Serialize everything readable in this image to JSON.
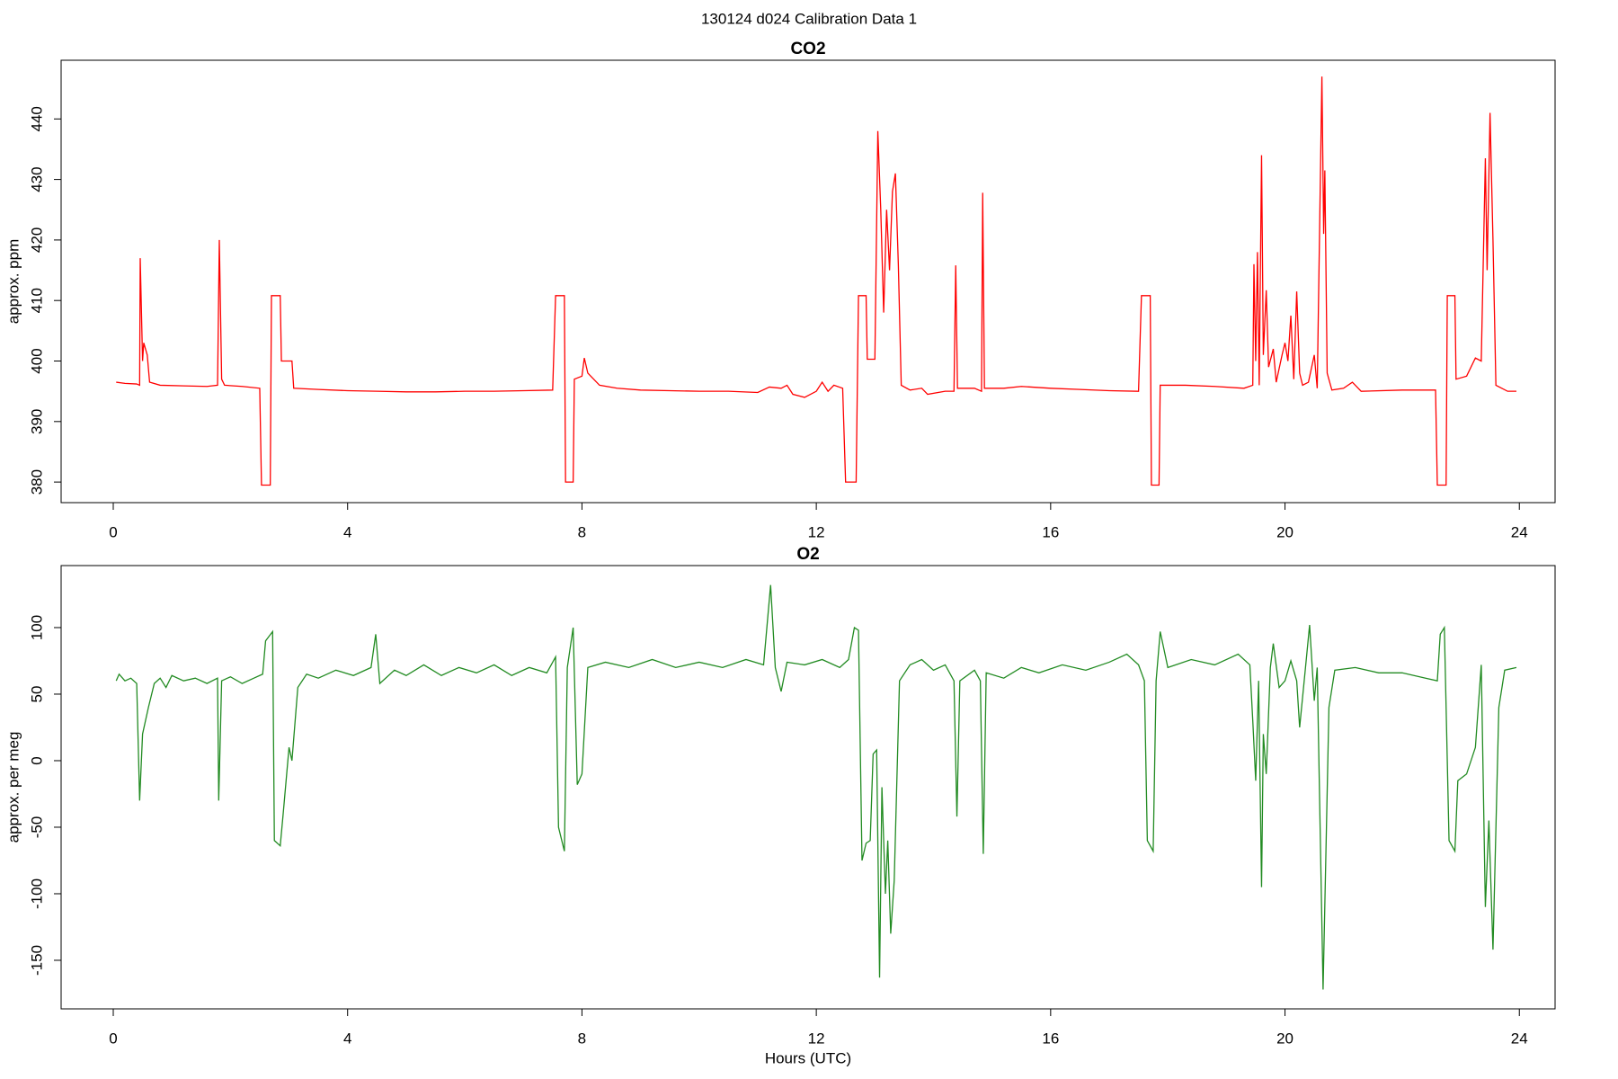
{
  "title": "130124   d024   Calibration Data 1",
  "chart_data": [
    {
      "type": "line",
      "title": "CO2",
      "ylabel": "approx. ppm",
      "xlim": [
        -0.89,
        24.61
      ],
      "ylim": [
        376.6,
        449.7
      ],
      "xticks": [
        0,
        4,
        8,
        12,
        16,
        20,
        24
      ],
      "yticks": [
        380,
        390,
        400,
        410,
        420,
        430,
        440
      ],
      "color": "#ff0000",
      "x": [
        0.05,
        0.2,
        0.4,
        0.45,
        0.46,
        0.5,
        0.52,
        0.58,
        0.62,
        0.8,
        1.2,
        1.6,
        1.78,
        1.81,
        1.85,
        1.9,
        2.2,
        2.5,
        2.53,
        2.68,
        2.7,
        2.85,
        2.87,
        3.05,
        3.08,
        3.5,
        4,
        4.5,
        5,
        5.5,
        6,
        6.5,
        7,
        7.5,
        7.55,
        7.7,
        7.72,
        7.85,
        7.87,
        8,
        8.04,
        8.1,
        8.3,
        8.6,
        9,
        9.5,
        10,
        10.5,
        11,
        11.2,
        11.4,
        11.5,
        11.6,
        11.8,
        12,
        12.1,
        12.2,
        12.3,
        12.45,
        12.5,
        12.68,
        12.72,
        12.85,
        12.87,
        13,
        13.05,
        13.1,
        13.15,
        13.2,
        13.25,
        13.3,
        13.35,
        13.4,
        13.45,
        13.6,
        13.8,
        13.9,
        14.2,
        14.35,
        14.38,
        14.41,
        14.7,
        14.82,
        14.84,
        14.87,
        15.2,
        15.5,
        16,
        16.5,
        17,
        17.5,
        17.55,
        17.7,
        17.72,
        17.85,
        17.87,
        18.3,
        18.8,
        19.3,
        19.45,
        19.47,
        19.5,
        19.53,
        19.56,
        19.6,
        19.63,
        19.68,
        19.72,
        19.8,
        19.85,
        19.95,
        20,
        20.05,
        20.1,
        20.15,
        20.2,
        20.25,
        20.3,
        20.4,
        20.5,
        20.55,
        20.63,
        20.66,
        20.68,
        20.72,
        20.8,
        21,
        21.15,
        21.3,
        22,
        22.5,
        22.57,
        22.6,
        22.75,
        22.77,
        22.9,
        22.92,
        23.1,
        23.25,
        23.35,
        23.42,
        23.45,
        23.5,
        23.55,
        23.6,
        23.8,
        23.95
      ],
      "values": [
        396.5,
        396.3,
        396.2,
        396,
        417,
        400,
        403,
        401,
        396.5,
        396,
        395.9,
        395.8,
        396,
        420,
        397,
        396,
        395.8,
        395.5,
        379.5,
        379.5,
        410.8,
        410.8,
        400,
        400,
        395.5,
        395.3,
        395.1,
        395,
        394.9,
        394.9,
        395,
        395,
        395.1,
        395.2,
        410.8,
        410.8,
        380,
        380,
        397,
        397.5,
        400.5,
        398,
        396,
        395.5,
        395.2,
        395.1,
        395,
        395,
        394.8,
        395.7,
        395.5,
        396,
        394.5,
        394,
        395,
        396.5,
        395,
        396,
        395.5,
        380,
        380,
        410.8,
        410.8,
        400.3,
        400.3,
        438,
        425,
        408,
        425,
        415,
        428,
        431,
        416,
        396,
        395.2,
        395.5,
        394.5,
        395,
        395,
        415.8,
        395.5,
        395.5,
        395,
        427.8,
        395.5,
        395.5,
        395.8,
        395.5,
        395.3,
        395.1,
        395,
        410.8,
        410.8,
        379.5,
        379.5,
        396,
        396,
        395.8,
        395.5,
        396,
        416,
        400,
        418,
        396,
        434,
        401,
        411.7,
        399,
        402,
        396.5,
        401,
        403,
        400,
        407.5,
        397,
        411.5,
        398,
        396,
        396.5,
        401,
        395.5,
        447,
        421,
        431.5,
        398,
        395.2,
        395.5,
        396.5,
        395,
        395.2,
        395.2,
        395.2,
        379.5,
        379.5,
        410.8,
        410.8,
        397,
        397.5,
        400.5,
        400,
        433.5,
        415,
        441,
        420,
        396,
        395,
        395
      ]
    },
    {
      "type": "line",
      "title": "O2",
      "ylabel": "approx. per meg",
      "xlabel": "Hours (UTC)",
      "xlim": [
        -0.89,
        24.61
      ],
      "ylim": [
        -186.5,
        146.6
      ],
      "xticks": [
        0,
        4,
        8,
        12,
        16,
        20,
        24
      ],
      "yticks": [
        -150,
        -100,
        -50,
        0,
        50,
        100
      ],
      "color": "#228b22",
      "x": [
        0.05,
        0.1,
        0.2,
        0.3,
        0.4,
        0.45,
        0.5,
        0.6,
        0.7,
        0.8,
        0.9,
        1,
        1.2,
        1.4,
        1.6,
        1.78,
        1.8,
        1.85,
        2,
        2.2,
        2.4,
        2.55,
        2.6,
        2.72,
        2.75,
        2.85,
        2.9,
        3,
        3.05,
        3.15,
        3.3,
        3.5,
        3.8,
        4.1,
        4.4,
        4.48,
        4.55,
        4.8,
        5,
        5.3,
        5.6,
        5.9,
        6.2,
        6.5,
        6.8,
        7.1,
        7.4,
        7.55,
        7.6,
        7.7,
        7.75,
        7.85,
        7.92,
        8,
        8.1,
        8.4,
        8.8,
        9.2,
        9.6,
        10,
        10.4,
        10.8,
        11.1,
        11.22,
        11.3,
        11.4,
        11.5,
        11.8,
        12.1,
        12.4,
        12.55,
        12.65,
        12.72,
        12.78,
        12.85,
        12.92,
        12.97,
        13.03,
        13.08,
        13.12,
        13.18,
        13.22,
        13.27,
        13.33,
        13.42,
        13.6,
        13.8,
        14,
        14.2,
        14.35,
        14.4,
        14.45,
        14.7,
        14.8,
        14.85,
        14.9,
        15.2,
        15.5,
        15.8,
        16.2,
        16.6,
        17,
        17.3,
        17.5,
        17.6,
        17.65,
        17.75,
        17.8,
        17.87,
        18,
        18.4,
        18.8,
        19.2,
        19.4,
        19.45,
        19.5,
        19.55,
        19.6,
        19.63,
        19.68,
        19.75,
        19.8,
        19.9,
        20,
        20.1,
        20.2,
        20.25,
        20.35,
        20.42,
        20.5,
        20.55,
        20.65,
        20.75,
        20.85,
        21.2,
        21.6,
        22,
        22.4,
        22.6,
        22.65,
        22.72,
        22.8,
        22.9,
        22.95,
        23.1,
        23.25,
        23.35,
        23.42,
        23.48,
        23.55,
        23.65,
        23.75,
        23.95
      ],
      "values": [
        60,
        65,
        60,
        62,
        58,
        -30,
        20,
        40,
        58,
        62,
        55,
        64,
        60,
        62,
        58,
        62,
        -30,
        60,
        63,
        58,
        62,
        65,
        90,
        97,
        -60,
        -64,
        -40,
        10,
        0,
        55,
        65,
        62,
        68,
        64,
        70,
        95,
        58,
        68,
        64,
        72,
        64,
        70,
        66,
        72,
        64,
        70,
        66,
        78,
        -50,
        -68,
        70,
        100,
        -18,
        -10,
        70,
        74,
        70,
        76,
        70,
        74,
        70,
        76,
        72,
        132,
        70,
        52,
        74,
        72,
        76,
        70,
        76,
        100,
        98,
        -75,
        -62,
        -60,
        5,
        8,
        -163,
        -20,
        -100,
        -60,
        -130,
        -90,
        60,
        72,
        76,
        68,
        72,
        60,
        -42,
        60,
        68,
        60,
        -70,
        66,
        62,
        70,
        66,
        72,
        68,
        74,
        80,
        72,
        60,
        -60,
        -68,
        60,
        97,
        70,
        76,
        72,
        80,
        72,
        30,
        -15,
        60,
        -95,
        20,
        -10,
        70,
        88,
        55,
        60,
        75,
        60,
        25,
        70,
        102,
        45,
        70,
        -172,
        40,
        68,
        70,
        66,
        66,
        62,
        60,
        95,
        100,
        -60,
        -68,
        -15,
        -10,
        10,
        72,
        -110,
        -45,
        -142,
        40,
        68,
        70
      ]
    }
  ]
}
